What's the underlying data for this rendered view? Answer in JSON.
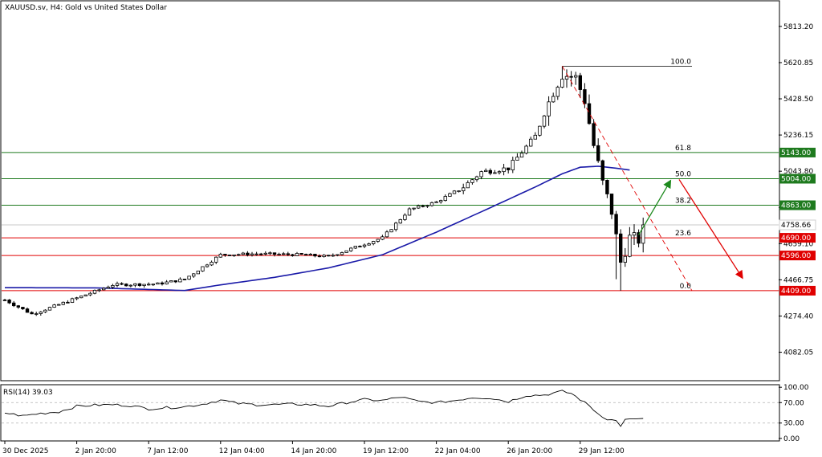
{
  "header": {
    "title": "XAUUSD.sv, H4:  Gold vs United States Dollar"
  },
  "colors": {
    "background": "#ffffff",
    "frame": "#000000",
    "grid": "#c8c8c8",
    "candle_bull": "#ffffff",
    "candle_bear": "#000000",
    "candle_outline": "#000000",
    "ma": "#1a1aa8",
    "support_resistance_red": "#e00000",
    "fib_green": "#1e7a1e",
    "arrow_up": "#1e8a1e",
    "arrow_down": "#e00000",
    "rsi_line": "#000000",
    "rsi_level": "#b0b0b0",
    "bid_line": "#c8c8c8"
  },
  "chart_data": [
    {
      "type": "candlestick",
      "title": "XAUUSD.sv, H4:  Gold vs United States Dollar",
      "y_ticks": [
        "5813.20",
        "5620.85",
        "5428.50",
        "5236.15",
        "5043.80",
        "4851.45",
        "4659.10",
        "4466.75",
        "4274.40",
        "4082.05"
      ],
      "y_tick_values": [
        5813.2,
        5620.85,
        5428.5,
        5236.15,
        5043.8,
        4851.45,
        4659.1,
        4466.75,
        4274.4,
        4082.05
      ],
      "ylim": [
        3935,
        5945
      ],
      "x_ticks": [
        "30 Dec 2025",
        "2 Jan 20:00",
        "7 Jan 12:00",
        "12 Jan 04:00",
        "14 Jan 20:00",
        "19 Jan 12:00",
        "22 Jan 04:00",
        "26 Jan 20:00",
        "29 Jan 12:00"
      ],
      "x_tick_bars": [
        0,
        16,
        32,
        48,
        64,
        80,
        96,
        112,
        128
      ],
      "bar_count": 143,
      "ohlc_key_points": [
        {
          "bar": 0,
          "close": 4360
        },
        {
          "bar": 6,
          "close": 4285
        },
        {
          "bar": 12,
          "close": 4335
        },
        {
          "bar": 24,
          "close": 4440
        },
        {
          "bar": 34,
          "close": 4445
        },
        {
          "bar": 40,
          "close": 4470
        },
        {
          "bar": 48,
          "close": 4600
        },
        {
          "bar": 56,
          "close": 4605
        },
        {
          "bar": 66,
          "close": 4600
        },
        {
          "bar": 72,
          "close": 4590
        },
        {
          "bar": 78,
          "close": 4640
        },
        {
          "bar": 84,
          "close": 4690
        },
        {
          "bar": 90,
          "close": 4840
        },
        {
          "bar": 96,
          "close": 4880
        },
        {
          "bar": 102,
          "close": 4960
        },
        {
          "bar": 106,
          "close": 5040
        },
        {
          "bar": 112,
          "close": 5060
        },
        {
          "bar": 118,
          "close": 5230
        },
        {
          "bar": 122,
          "close": 5470
        },
        {
          "bar": 124,
          "close": 5560
        },
        {
          "bar": 127,
          "close": 5540
        },
        {
          "bar": 129,
          "close": 5420
        },
        {
          "bar": 131,
          "close": 5180
        },
        {
          "bar": 133,
          "close": 4980
        },
        {
          "bar": 135,
          "close": 4830
        },
        {
          "bar": 137,
          "close": 4560
        },
        {
          "bar": 139,
          "close": 4690
        },
        {
          "bar": 141,
          "close": 4680
        },
        {
          "bar": 142,
          "close": 4700
        }
      ],
      "moving_average": [
        {
          "bar": 0,
          "value": 4425
        },
        {
          "bar": 20,
          "value": 4424
        },
        {
          "bar": 40,
          "value": 4410
        },
        {
          "bar": 48,
          "value": 4440
        },
        {
          "bar": 60,
          "value": 4480
        },
        {
          "bar": 72,
          "value": 4530
        },
        {
          "bar": 84,
          "value": 4600
        },
        {
          "bar": 96,
          "value": 4720
        },
        {
          "bar": 108,
          "value": 4850
        },
        {
          "bar": 118,
          "value": 4960
        },
        {
          "bar": 124,
          "value": 5030
        },
        {
          "bar": 128,
          "value": 5065
        },
        {
          "bar": 132,
          "value": 5070
        },
        {
          "bar": 136,
          "value": 5060
        },
        {
          "bar": 139,
          "value": 5050
        }
      ],
      "horizontal_levels": [
        {
          "value": 5143.0,
          "label": "5143.00",
          "color": "green"
        },
        {
          "value": 5004.0,
          "label": "5004.00",
          "color": "green"
        },
        {
          "value": 4863.0,
          "label": "4863.00",
          "color": "green"
        },
        {
          "value": 4690.0,
          "label": "4690.00",
          "color": "red"
        },
        {
          "value": 4596.0,
          "label": "4596.00",
          "color": "red"
        },
        {
          "value": 4409.0,
          "label": "4409.00",
          "color": "red"
        }
      ],
      "current_price": {
        "value": 4758.66,
        "label": "4758.66"
      },
      "fibonacci": {
        "high": 5602,
        "low": 4409,
        "levels": [
          {
            "label": "100.0",
            "value": 5602
          },
          {
            "label": "61.8",
            "value": 5143
          },
          {
            "label": "50.0",
            "value": 5004
          },
          {
            "label": "38.2",
            "value": 4863
          },
          {
            "label": "23.6",
            "value": 4690
          },
          {
            "label": "0.0",
            "value": 4409
          }
        ]
      },
      "arrows": [
        {
          "direction": "up",
          "from_bar": 141,
          "from": 4705,
          "to_bar": 148,
          "to": 4990
        },
        {
          "direction": "down",
          "from_bar": 150,
          "from": 5000,
          "to_bar": 164,
          "to": 4480
        }
      ]
    },
    {
      "type": "line",
      "title": "RSI(14) 39.03",
      "ylim": [
        -5,
        105
      ],
      "y_ticks": [
        "100.00",
        "70.00",
        "30.00",
        "0.00"
      ],
      "y_tick_values": [
        100,
        70,
        30,
        0
      ],
      "levels": [
        70,
        30
      ],
      "values": [
        {
          "bar": 0,
          "value": 50
        },
        {
          "bar": 4,
          "value": 44
        },
        {
          "bar": 8,
          "value": 49
        },
        {
          "bar": 12,
          "value": 52
        },
        {
          "bar": 16,
          "value": 63
        },
        {
          "bar": 20,
          "value": 65
        },
        {
          "bar": 24,
          "value": 66
        },
        {
          "bar": 28,
          "value": 64
        },
        {
          "bar": 32,
          "value": 58
        },
        {
          "bar": 36,
          "value": 60
        },
        {
          "bar": 40,
          "value": 62
        },
        {
          "bar": 44,
          "value": 67
        },
        {
          "bar": 48,
          "value": 75
        },
        {
          "bar": 52,
          "value": 68
        },
        {
          "bar": 56,
          "value": 66
        },
        {
          "bar": 60,
          "value": 66
        },
        {
          "bar": 64,
          "value": 67
        },
        {
          "bar": 68,
          "value": 66
        },
        {
          "bar": 72,
          "value": 63
        },
        {
          "bar": 76,
          "value": 70
        },
        {
          "bar": 80,
          "value": 76
        },
        {
          "bar": 84,
          "value": 74
        },
        {
          "bar": 88,
          "value": 81
        },
        {
          "bar": 92,
          "value": 72
        },
        {
          "bar": 96,
          "value": 70
        },
        {
          "bar": 100,
          "value": 74
        },
        {
          "bar": 104,
          "value": 80
        },
        {
          "bar": 108,
          "value": 79
        },
        {
          "bar": 112,
          "value": 72
        },
        {
          "bar": 116,
          "value": 84
        },
        {
          "bar": 120,
          "value": 85
        },
        {
          "bar": 124,
          "value": 92
        },
        {
          "bar": 126,
          "value": 88
        },
        {
          "bar": 128,
          "value": 76
        },
        {
          "bar": 130,
          "value": 64
        },
        {
          "bar": 132,
          "value": 48
        },
        {
          "bar": 134,
          "value": 38
        },
        {
          "bar": 136,
          "value": 34
        },
        {
          "bar": 137,
          "value": 25
        },
        {
          "bar": 138,
          "value": 36
        },
        {
          "bar": 140,
          "value": 38
        },
        {
          "bar": 142,
          "value": 39.03
        }
      ]
    }
  ]
}
